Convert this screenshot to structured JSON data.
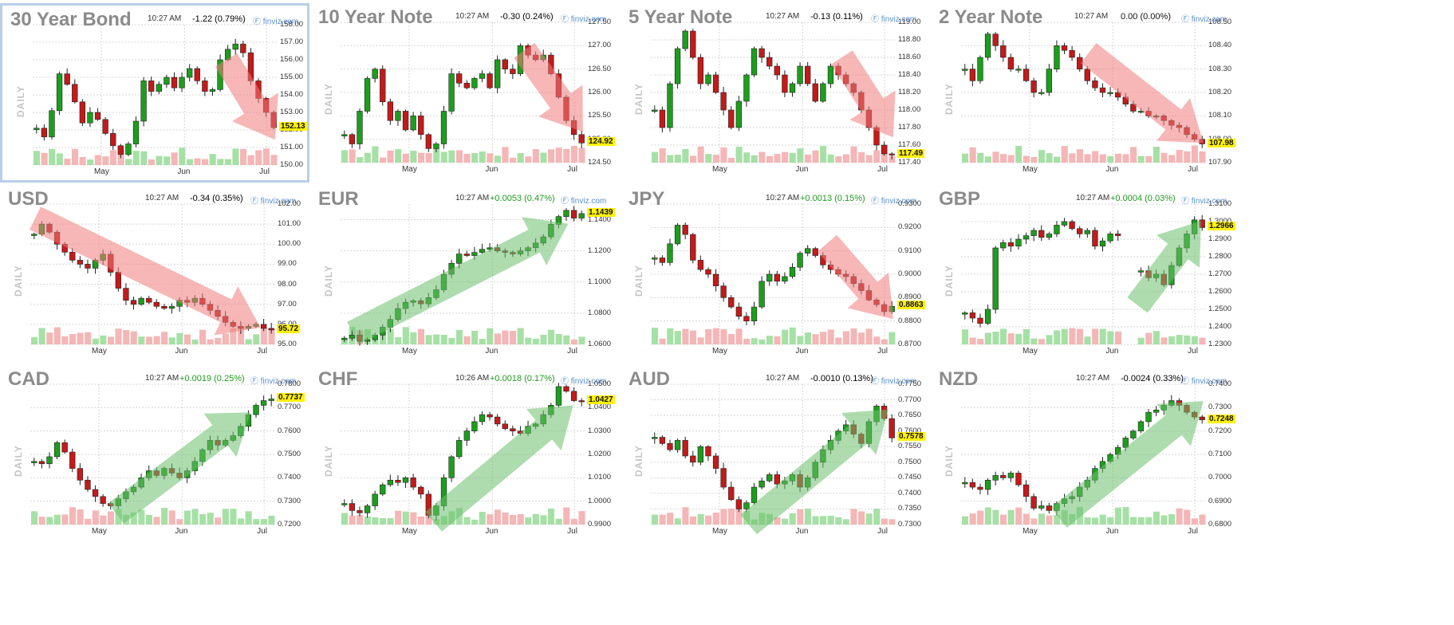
{
  "colors": {
    "up": "#1c9e1c",
    "down": "#c41a1a",
    "vol_up": "#a6e0a6",
    "vol_down": "#f4b6b6",
    "arrow_up": "#6bbf6b",
    "arrow_down": "#f07c7c",
    "grid": "#d7d7d7",
    "price_highlight": "#fff10a",
    "selection_border": "#b9cfe8"
  },
  "common": {
    "timeframe_label": "DAILY",
    "source": "finviz.com",
    "source_icon": "finviz-logo-icon"
  },
  "chart_data": [
    {
      "type": "candlestick",
      "title": "30 Year Bond",
      "time": "10:27 AM",
      "change": "-1.22 (0.79%)",
      "direction": "down",
      "selected": true,
      "last_price": "152.13",
      "yticks": [
        "158.00",
        "157.00",
        "156.00",
        "155.00",
        "154.00",
        "153.00",
        "152.00",
        "151.00",
        "150.00"
      ],
      "ylim": [
        150,
        158
      ],
      "xticks": [
        "May",
        "Jun",
        "Jul"
      ],
      "path": [
        152.1,
        151.6,
        153.1,
        155.2,
        154.6,
        153.6,
        152.4,
        153.0,
        152.6,
        151.8,
        151.1,
        150.6,
        151.2,
        152.5,
        154.8,
        154.2,
        154.6,
        155.0,
        154.4,
        155.0,
        155.5,
        154.8,
        154.2,
        154.3,
        156.0,
        156.6,
        156.9,
        156.4,
        154.8,
        153.8,
        153.0,
        152.13
      ],
      "trend": {
        "dir": "down",
        "from": [
          0.79,
          0.25
        ],
        "to": [
          0.99,
          0.82
        ]
      }
    },
    {
      "type": "candlestick",
      "title": "10 Year Note",
      "time": "10:27 AM",
      "change": "-0.30 (0.24%)",
      "direction": "down",
      "selected": false,
      "last_price": "124.92",
      "yticks": [
        "127.50",
        "127.00",
        "126.50",
        "126.00",
        "125.50",
        "125.00",
        "124.50"
      ],
      "ylim": [
        124.5,
        127.5
      ],
      "xticks": [
        "May",
        "Jun",
        "Jul"
      ],
      "path": [
        125.1,
        124.9,
        125.6,
        126.3,
        126.5,
        125.8,
        125.4,
        125.6,
        125.2,
        125.5,
        125.1,
        124.8,
        124.9,
        125.6,
        126.4,
        126.2,
        126.1,
        126.3,
        126.4,
        126.1,
        126.7,
        126.5,
        126.4,
        127.0,
        126.8,
        126.7,
        126.8,
        126.4,
        125.9,
        125.4,
        125.1,
        124.92
      ],
      "trend": {
        "dir": "down",
        "from": [
          0.75,
          0.2
        ],
        "to": [
          0.99,
          0.78
        ]
      }
    },
    {
      "type": "candlestick",
      "title": "5 Year Note",
      "time": "10:27 AM",
      "change": "-0.13 (0.11%)",
      "direction": "down",
      "selected": false,
      "last_price": "117.49",
      "yticks": [
        "119.00",
        "118.80",
        "118.60",
        "118.40",
        "118.20",
        "118.00",
        "117.80",
        "117.60",
        "117.40"
      ],
      "ylim": [
        117.4,
        119.0
      ],
      "xticks": [
        "May",
        "Jun",
        "Jul"
      ],
      "path": [
        118.0,
        117.8,
        118.3,
        118.7,
        118.9,
        118.6,
        118.3,
        118.4,
        118.2,
        118.0,
        117.8,
        118.1,
        118.4,
        118.7,
        118.6,
        118.5,
        118.4,
        118.2,
        118.3,
        118.5,
        118.3,
        118.1,
        118.3,
        118.5,
        118.4,
        118.3,
        118.2,
        118.0,
        117.8,
        117.6,
        117.5,
        117.49
      ],
      "trend": {
        "dir": "down",
        "from": [
          0.78,
          0.25
        ],
        "to": [
          0.99,
          0.82
        ]
      }
    },
    {
      "type": "candlestick",
      "title": "2 Year Note",
      "time": "10:27 AM",
      "change": "0.00 (0.00%)",
      "direction": "flat",
      "selected": false,
      "last_price": "107.98",
      "yticks": [
        "108.50",
        "108.40",
        "108.30",
        "108.20",
        "108.10",
        "108.00",
        "107.90"
      ],
      "ylim": [
        107.9,
        108.5
      ],
      "xticks": [
        "May",
        "Jun",
        "Jul"
      ],
      "path": [
        108.3,
        108.25,
        108.35,
        108.45,
        108.4,
        108.35,
        108.3,
        108.3,
        108.25,
        108.2,
        108.2,
        108.3,
        108.4,
        108.38,
        108.35,
        108.3,
        108.25,
        108.22,
        108.2,
        108.2,
        108.18,
        108.15,
        108.12,
        108.12,
        108.1,
        108.1,
        108.08,
        108.06,
        108.05,
        108.02,
        108.0,
        107.98
      ],
      "trend": {
        "dir": "down",
        "from": [
          0.52,
          0.22
        ],
        "to": [
          0.99,
          0.86
        ]
      }
    },
    {
      "type": "candlestick",
      "title": "USD",
      "time": "10:27 AM",
      "change": "-0.34 (0.35%)",
      "direction": "down",
      "selected": false,
      "last_price": "95.72",
      "yticks": [
        "102.00",
        "101.00",
        "100.00",
        "99.00",
        "98.00",
        "97.00",
        "96.00",
        "95.00"
      ],
      "ylim": [
        95,
        102
      ],
      "xticks": [
        "May",
        "Jun",
        "Jul"
      ],
      "path": [
        100.5,
        101.0,
        100.6,
        100.0,
        99.6,
        99.2,
        99.0,
        98.8,
        99.2,
        99.5,
        98.6,
        97.8,
        97.2,
        97.0,
        97.3,
        97.1,
        96.9,
        96.8,
        96.9,
        97.2,
        97.1,
        97.3,
        97.0,
        96.7,
        96.4,
        96.1,
        95.9,
        95.8,
        95.9,
        96.0,
        95.8,
        95.72
      ],
      "trend": {
        "dir": "down",
        "from": [
          0.02,
          0.1
        ],
        "to": [
          0.94,
          0.88
        ]
      }
    },
    {
      "type": "candlestick",
      "title": "EUR",
      "time": "10:27 AM",
      "change": "+0.0053 (0.47%)",
      "direction": "up",
      "selected": false,
      "last_price": "1.1439",
      "yticks": [
        "1.1400",
        "1.1200",
        "1.1000",
        "1.0800",
        "1.0600"
      ],
      "ylim": [
        1.06,
        1.15
      ],
      "xticks": [
        "May",
        "Jun",
        "Jul"
      ],
      "path": [
        1.064,
        1.066,
        1.062,
        1.063,
        1.066,
        1.071,
        1.076,
        1.083,
        1.087,
        1.088,
        1.086,
        1.09,
        1.095,
        1.105,
        1.112,
        1.118,
        1.117,
        1.119,
        1.121,
        1.122,
        1.12,
        1.119,
        1.118,
        1.12,
        1.122,
        1.125,
        1.129,
        1.137,
        1.142,
        1.146,
        1.141,
        1.1439
      ],
      "trend": {
        "dir": "up",
        "from": [
          0.05,
          0.92
        ],
        "to": [
          0.93,
          0.14
        ]
      }
    },
    {
      "type": "candlestick",
      "title": "JPY",
      "time": "10:27 AM",
      "change": "+0.0013 (0.15%)",
      "direction": "up",
      "selected": false,
      "last_price": "0.8863",
      "yticks": [
        "0.9300",
        "0.9200",
        "0.9100",
        "0.9000",
        "0.8900",
        "0.8800",
        "0.8700"
      ],
      "ylim": [
        0.87,
        0.93
      ],
      "xticks": [
        "May",
        "Jun",
        "Jul"
      ],
      "path": [
        0.907,
        0.905,
        0.913,
        0.921,
        0.917,
        0.906,
        0.902,
        0.9,
        0.895,
        0.89,
        0.886,
        0.882,
        0.88,
        0.886,
        0.897,
        0.9,
        0.897,
        0.899,
        0.903,
        0.909,
        0.911,
        0.908,
        0.904,
        0.902,
        0.9,
        0.899,
        0.896,
        0.893,
        0.889,
        0.887,
        0.884,
        0.8863
      ],
      "trend": {
        "dir": "down",
        "from": [
          0.72,
          0.28
        ],
        "to": [
          0.99,
          0.82
        ]
      }
    },
    {
      "type": "candlestick",
      "title": "GBP",
      "time": "10:27 AM",
      "change": "+0.0004 (0.03%)",
      "direction": "up",
      "selected": false,
      "last_price": "1.2966",
      "yticks": [
        "1.3100",
        "1.3000",
        "1.2900",
        "1.2800",
        "1.2700",
        "1.2600",
        "1.2500",
        "1.2400",
        "1.2300"
      ],
      "ylim": [
        1.23,
        1.31
      ],
      "xticks": [
        "May",
        "Jun",
        "Jul"
      ],
      "path": [
        1.248,
        1.245,
        1.242,
        1.25,
        1.285,
        1.288,
        1.286,
        1.29,
        1.292,
        1.295,
        1.291,
        1.293,
        1.298,
        1.3,
        1.296,
        1.293,
        1.295,
        1.286,
        1.289,
        1.293,
        1.292,
        null,
        null,
        1.272,
        1.268,
        1.27,
        1.264,
        1.275,
        1.285,
        1.293,
        1.301,
        1.2966
      ],
      "trend": {
        "dir": "up",
        "from": [
          0.72,
          0.72
        ],
        "to": [
          0.98,
          0.12
        ]
      }
    },
    {
      "type": "candlestick",
      "title": "CAD",
      "time": "10:27 AM",
      "change": "+0.0019 (0.25%)",
      "direction": "up",
      "selected": false,
      "last_price": "0.7737",
      "yticks": [
        "0.7800",
        "0.7700",
        "0.7600",
        "0.7500",
        "0.7400",
        "0.7300",
        "0.7200"
      ],
      "ylim": [
        0.72,
        0.78
      ],
      "xticks": [
        "May",
        "Jun",
        "Jul"
      ],
      "path": [
        0.747,
        0.746,
        0.749,
        0.755,
        0.751,
        0.744,
        0.739,
        0.735,
        0.732,
        0.729,
        0.728,
        0.731,
        0.734,
        0.736,
        0.74,
        0.743,
        0.741,
        0.744,
        0.742,
        0.74,
        0.743,
        0.747,
        0.752,
        0.756,
        0.754,
        0.756,
        0.758,
        0.762,
        0.767,
        0.771,
        0.773,
        0.7737
      ],
      "trend": {
        "dir": "up",
        "from": [
          0.35,
          0.92
        ],
        "to": [
          0.9,
          0.2
        ]
      }
    },
    {
      "type": "candlestick",
      "title": "CHF",
      "time": "10:26 AM",
      "change": "+0.0018 (0.17%)",
      "direction": "up",
      "selected": false,
      "last_price": "1.0427",
      "yticks": [
        "1.0500",
        "1.0400",
        "1.0300",
        "1.0200",
        "1.0100",
        "1.0000",
        "0.9900"
      ],
      "ylim": [
        0.99,
        1.05
      ],
      "xticks": [
        "May",
        "Jun",
        "Jul"
      ],
      "path": [
        0.999,
        0.996,
        0.995,
        0.998,
        1.003,
        1.007,
        1.009,
        1.008,
        1.01,
        1.006,
        1.003,
        0.994,
        0.998,
        1.01,
        1.019,
        1.026,
        1.03,
        1.034,
        1.037,
        1.036,
        1.033,
        1.031,
        1.03,
        1.029,
        1.032,
        1.033,
        1.037,
        1.041,
        1.049,
        1.047,
        1.043,
        1.0427
      ],
      "trend": {
        "dir": "up",
        "from": [
          0.38,
          0.98
        ],
        "to": [
          0.95,
          0.15
        ]
      }
    },
    {
      "type": "candlestick",
      "title": "AUD",
      "time": "10:27 AM",
      "change": "-0.0010 (0.13%)",
      "direction": "down",
      "selected": false,
      "last_price": "0.7578",
      "yticks": [
        "0.7750",
        "0.7700",
        "0.7650",
        "0.7600",
        "0.7550",
        "0.7500",
        "0.7450",
        "0.7400",
        "0.7350",
        "0.7300"
      ],
      "ylim": [
        0.73,
        0.775
      ],
      "xticks": [
        "May",
        "Jun",
        "Jul"
      ],
      "path": [
        0.758,
        0.756,
        0.754,
        0.757,
        0.752,
        0.75,
        0.755,
        0.752,
        0.748,
        0.742,
        0.738,
        0.735,
        0.737,
        0.742,
        0.744,
        0.746,
        0.743,
        0.744,
        0.746,
        0.742,
        0.745,
        0.75,
        0.754,
        0.757,
        0.76,
        0.762,
        0.759,
        0.756,
        0.763,
        0.768,
        0.764,
        0.7578
      ],
      "trend": {
        "dir": "up",
        "from": [
          0.4,
          1.0
        ],
        "to": [
          0.97,
          0.18
        ]
      }
    },
    {
      "type": "candlestick",
      "title": "NZD",
      "time": "10:27 AM",
      "change": "-0.0024 (0.33%)",
      "direction": "down",
      "selected": false,
      "last_price": "0.7248",
      "yticks": [
        "0.7400",
        "0.7300",
        "0.7200",
        "0.7100",
        "0.7000",
        "0.6900",
        "0.6800"
      ],
      "ylim": [
        0.68,
        0.74
      ],
      "xticks": [
        "May",
        "Jun",
        "Jul"
      ],
      "path": [
        0.698,
        0.696,
        0.695,
        0.699,
        0.701,
        0.7,
        0.702,
        0.697,
        0.692,
        0.687,
        0.688,
        0.686,
        0.689,
        0.691,
        0.692,
        0.696,
        0.699,
        0.704,
        0.707,
        0.71,
        0.713,
        0.717,
        0.72,
        0.724,
        0.728,
        0.729,
        0.731,
        0.733,
        0.731,
        0.728,
        0.726,
        0.7248
      ],
      "trend": {
        "dir": "up",
        "from": [
          0.4,
          0.95
        ],
        "to": [
          0.99,
          0.12
        ]
      }
    }
  ]
}
